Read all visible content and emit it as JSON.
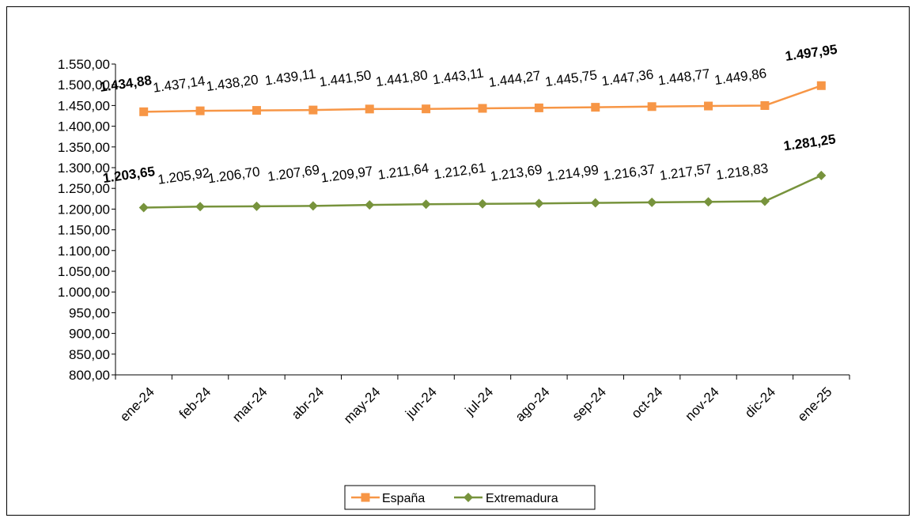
{
  "chart_data": {
    "type": "line",
    "categories": [
      "ene-24",
      "feb-24",
      "mar-24",
      "abr-24",
      "may-24",
      "jun-24",
      "jul-24",
      "ago-24",
      "sep-24",
      "oct-24",
      "nov-24",
      "dic-24",
      "ene-25"
    ],
    "series": [
      {
        "name": "España",
        "color": "#F79646",
        "marker": "square",
        "values": [
          1434.88,
          1437.14,
          1438.2,
          1439.11,
          1441.5,
          1441.8,
          1443.11,
          1444.27,
          1445.75,
          1447.36,
          1448.77,
          1449.86,
          1497.95
        ],
        "labels": [
          "1.434,88",
          "1.437,14",
          "1.438,20",
          "1.439,11",
          "1.441,50",
          "1.441,80",
          "1.443,11",
          "1.444,27",
          "1.445,75",
          "1.447,36",
          "1.448,77",
          "1.449,86",
          "1.497,95"
        ],
        "bold_labels": [
          true,
          false,
          false,
          false,
          false,
          false,
          false,
          false,
          false,
          false,
          false,
          false,
          true
        ]
      },
      {
        "name": "Extremadura",
        "color": "#77933C",
        "marker": "diamond",
        "values": [
          1203.65,
          1205.92,
          1206.7,
          1207.69,
          1209.97,
          1211.64,
          1212.61,
          1213.69,
          1214.99,
          1216.37,
          1217.57,
          1218.83,
          1281.25
        ],
        "labels": [
          "1.203,65",
          "1.205,92",
          "1.206,70",
          "1.207,69",
          "1.209,97",
          "1.211,64",
          "1.212,61",
          "1.213,69",
          "1.214,99",
          "1.216,37",
          "1.217,57",
          "1.218,83",
          "1.281,25"
        ],
        "bold_labels": [
          true,
          false,
          false,
          false,
          false,
          false,
          false,
          false,
          false,
          false,
          false,
          false,
          true
        ]
      }
    ],
    "ylim": [
      800,
      1550
    ],
    "ytick_step": 50,
    "ytick_labels": [
      "800,00",
      "850,00",
      "900,00",
      "950,00",
      "1.000,00",
      "1.050,00",
      "1.100,00",
      "1.150,00",
      "1.200,00",
      "1.250,00",
      "1.300,00",
      "1.350,00",
      "1.400,00",
      "1.450,00",
      "1.500,00",
      "1.550,00"
    ],
    "grid": false,
    "legend_position": "bottom",
    "title": "",
    "xlabel": "",
    "ylabel": ""
  }
}
